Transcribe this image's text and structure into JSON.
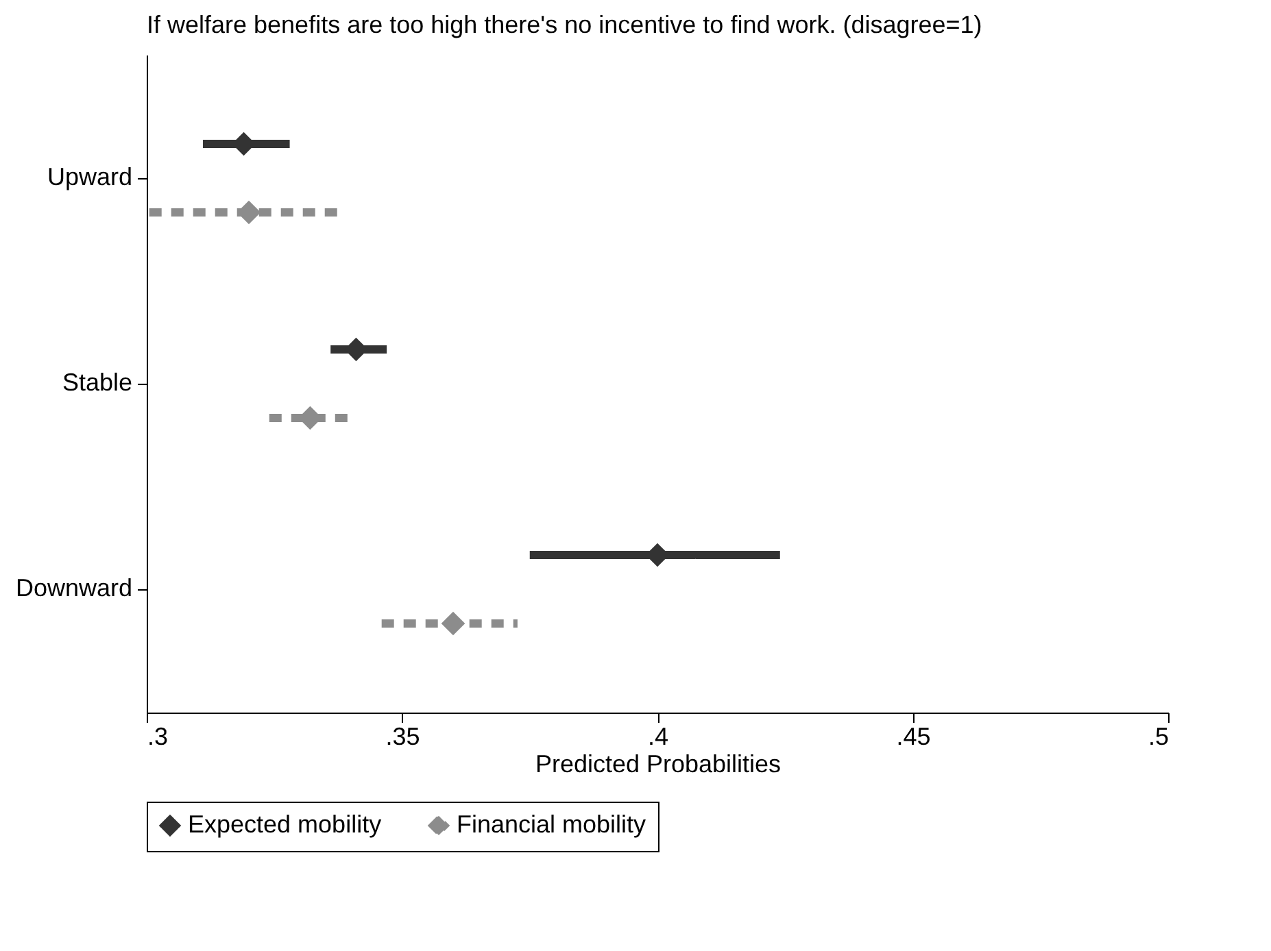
{
  "chart_data": {
    "type": "scatter",
    "title": "If welfare benefits are too high there's no incentive to find work. (disagree=1)",
    "xlabel": "Predicted Probabilities",
    "categories": [
      "Upward",
      "Stable",
      "Downward"
    ],
    "orientation": "horizontal",
    "marker": "diamond",
    "legend": "bottom",
    "grid": false,
    "series": [
      {
        "name": "Expected mobility",
        "color": "#333333",
        "line_style": "solid",
        "values": [
          0.319,
          0.341,
          0.4
        ],
        "errors": [
          [
            0.311,
            0.328
          ],
          [
            0.336,
            0.347
          ],
          [
            0.375,
            0.424
          ]
        ]
      },
      {
        "name": "Financial mobility",
        "color": "#8c8c8c",
        "line_style": "dashed",
        "values": [
          0.32,
          0.332,
          0.36
        ],
        "errors": [
          [
            0.3005,
            0.338
          ],
          [
            0.324,
            0.3395
          ],
          [
            0.346,
            0.3726
          ]
        ]
      }
    ],
    "xlim": [
      0.3,
      0.5
    ],
    "xticks": [
      {
        "value": 0.3,
        "label": ".3"
      },
      {
        "value": 0.35,
        "label": ".35"
      },
      {
        "value": 0.4,
        "label": ".4"
      },
      {
        "value": 0.45,
        "label": ".45"
      },
      {
        "value": 0.5,
        "label": ".5"
      }
    ]
  }
}
